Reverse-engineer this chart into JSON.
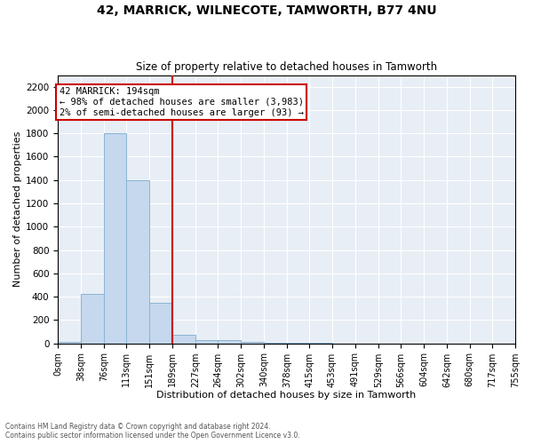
{
  "title": "42, MARRICK, WILNECOTE, TAMWORTH, B77 4NU",
  "subtitle": "Size of property relative to detached houses in Tamworth",
  "xlabel": "Distribution of detached houses by size in Tamworth",
  "ylabel": "Number of detached properties",
  "annotation_line1": "42 MARRICK: 194sqm",
  "annotation_line2": "← 98% of detached houses are smaller (3,983)",
  "annotation_line3": "2% of semi-detached houses are larger (93) →",
  "bin_edges": [
    0,
    38,
    76,
    113,
    151,
    189,
    227,
    264,
    302,
    340,
    378,
    415,
    453,
    491,
    529,
    566,
    604,
    642,
    680,
    717,
    755
  ],
  "bin_counts": [
    15,
    420,
    1800,
    1400,
    350,
    75,
    30,
    25,
    15,
    8,
    3,
    1,
    0,
    0,
    0,
    0,
    0,
    0,
    0,
    0
  ],
  "bar_color": "#c5d8ed",
  "bar_edge_color": "#8ab4d4",
  "vline_color": "#cc0000",
  "vline_x": 189,
  "annotation_box_color": "#cc0000",
  "background_color": "#e8eef5",
  "ylim": [
    0,
    2300
  ],
  "yticks": [
    0,
    200,
    400,
    600,
    800,
    1000,
    1200,
    1400,
    1600,
    1800,
    2000,
    2200
  ],
  "footer_line1": "Contains HM Land Registry data © Crown copyright and database right 2024.",
  "footer_line2": "Contains public sector information licensed under the Open Government Licence v3.0."
}
